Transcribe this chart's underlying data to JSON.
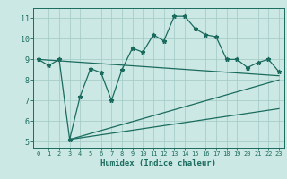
{
  "title": "",
  "xlabel": "Humidex (Indice chaleur)",
  "ylabel": "",
  "bg_color": "#cce8e4",
  "line_color": "#1a6b5e",
  "grid_color": "#a8cec9",
  "xlim": [
    -0.5,
    23.5
  ],
  "ylim": [
    4.7,
    11.5
  ],
  "xticks": [
    0,
    1,
    2,
    3,
    4,
    5,
    6,
    7,
    8,
    9,
    10,
    11,
    12,
    13,
    14,
    15,
    16,
    17,
    18,
    19,
    20,
    21,
    22,
    23
  ],
  "yticks": [
    5,
    6,
    7,
    8,
    9,
    10,
    11
  ],
  "main_x": [
    0,
    1,
    2,
    3,
    4,
    5,
    6,
    7,
    8,
    9,
    10,
    11,
    12,
    13,
    14,
    15,
    16,
    17,
    18,
    19,
    20,
    21,
    22,
    23
  ],
  "main_y": [
    9.0,
    8.7,
    9.0,
    5.1,
    7.2,
    8.55,
    8.35,
    7.0,
    8.5,
    9.55,
    9.35,
    10.2,
    9.9,
    11.1,
    11.1,
    10.5,
    10.2,
    10.1,
    9.0,
    9.0,
    8.6,
    8.85,
    9.0,
    8.4
  ],
  "line1_x": [
    0,
    23
  ],
  "line1_y": [
    9.0,
    8.2
  ],
  "line2_x": [
    3,
    23
  ],
  "line2_y": [
    5.1,
    8.0
  ],
  "line3_x": [
    3,
    23
  ],
  "line3_y": [
    5.1,
    6.6
  ],
  "marker": "*",
  "markersize": 3.5,
  "linewidth": 0.9,
  "xlabel_fontsize": 6.5,
  "tick_fontsize": 5.8
}
